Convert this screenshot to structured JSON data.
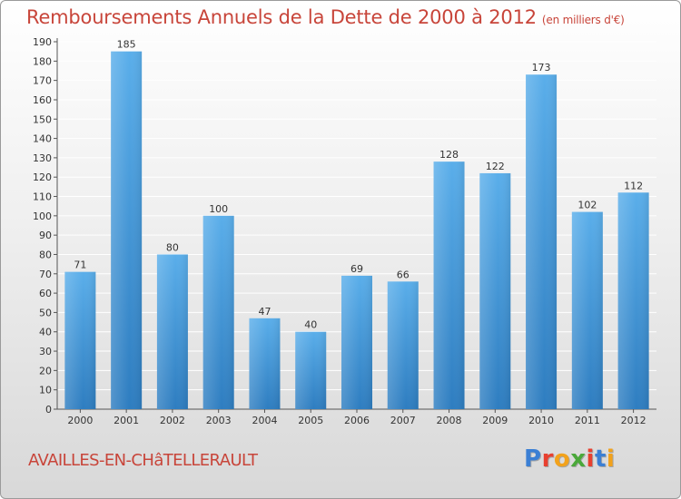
{
  "title": "Remboursements Annuels de la Dette de 2000 à 2012",
  "unit": "(en milliers d'€)",
  "commune": "AVAILLES-EN-CHâTELLERAULT",
  "logo": {
    "letters": [
      "P",
      "r",
      "o",
      "x",
      "i",
      "t",
      "i"
    ],
    "colors": [
      "#3b7fd4",
      "#e8402f",
      "#f2a21c",
      "#4aa83a",
      "#e8402f",
      "#3b7fd4",
      "#f2a21c"
    ]
  },
  "colors": {
    "bar": "#4a9fe0",
    "bar_dark": "#2f7ec2",
    "title": "#c8453a"
  },
  "chart_data": {
    "type": "bar",
    "categories": [
      "2000",
      "2001",
      "2002",
      "2003",
      "2004",
      "2005",
      "2006",
      "2007",
      "2008",
      "2009",
      "2010",
      "2011",
      "2012"
    ],
    "values": [
      71,
      185,
      80,
      100,
      47,
      40,
      69,
      66,
      128,
      122,
      173,
      102,
      112
    ],
    "ylim": [
      0,
      190
    ],
    "yticks": [
      0,
      10,
      20,
      30,
      40,
      50,
      60,
      70,
      80,
      90,
      100,
      110,
      120,
      130,
      140,
      150,
      160,
      170,
      180,
      190
    ],
    "grid": true,
    "xlabel": "",
    "ylabel": ""
  }
}
